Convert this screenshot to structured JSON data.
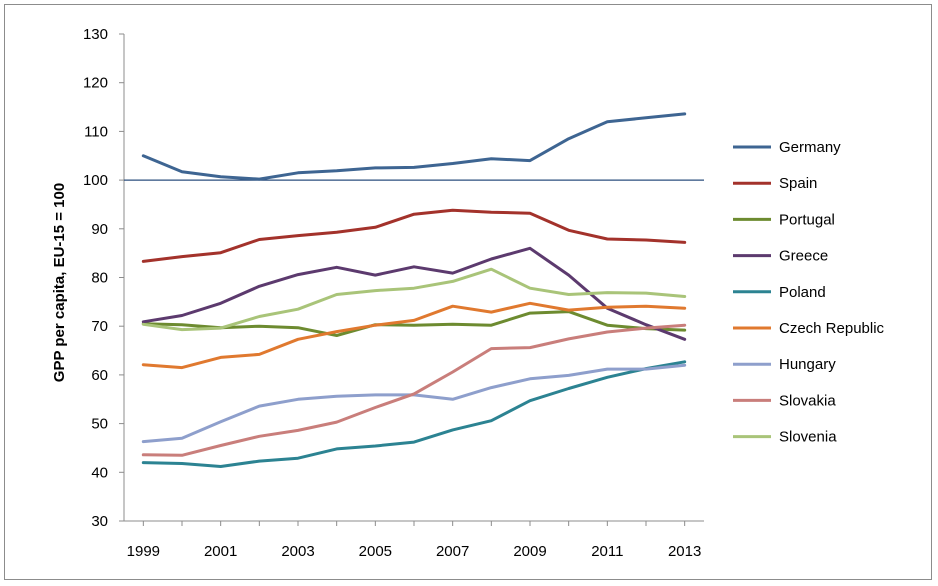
{
  "chart_data": {
    "type": "line",
    "title": "",
    "xlabel": "",
    "ylabel": "GPP per capita, EU-15 = 100",
    "ylim": [
      30,
      130
    ],
    "yticks": [
      30,
      40,
      50,
      60,
      70,
      80,
      90,
      100,
      110,
      120,
      130
    ],
    "xticks": [
      1999,
      2001,
      2003,
      2005,
      2007,
      2009,
      2011,
      2013
    ],
    "grid": false,
    "legend_position": "right",
    "reference_line": 100,
    "x": [
      1999,
      2000,
      2001,
      2002,
      2003,
      2004,
      2005,
      2006,
      2007,
      2008,
      2009,
      2010,
      2011,
      2012,
      2013
    ],
    "series": [
      {
        "name": "Germany",
        "color": "#3e6592",
        "values": [
          105,
          101.7,
          100.7,
          100.2,
          101.5,
          101.9,
          102.5,
          102.6,
          103.4,
          104.4,
          104,
          108.5,
          112,
          112.8,
          113.6
        ]
      },
      {
        "name": "Spain",
        "color": "#a3322b",
        "values": [
          83.3,
          84.3,
          85.1,
          87.8,
          88.6,
          89.3,
          90.3,
          93,
          93.8,
          93.4,
          93.2,
          89.7,
          87.9,
          87.7,
          87.2
        ]
      },
      {
        "name": "Portugal",
        "color": "#6d8b30",
        "values": [
          70.5,
          70.3,
          69.7,
          70,
          69.7,
          68.1,
          70.3,
          70.2,
          70.4,
          70.2,
          72.7,
          73,
          70.2,
          69.5,
          69.2
        ]
      },
      {
        "name": "Greece",
        "color": "#5c3a6e",
        "values": [
          70.9,
          72.2,
          74.7,
          78.2,
          80.6,
          82.1,
          80.5,
          82.2,
          80.9,
          83.8,
          86,
          80.5,
          73.7,
          70.3,
          67.3
        ]
      },
      {
        "name": "Poland",
        "color": "#2c8392",
        "values": [
          42,
          41.8,
          41.2,
          42.3,
          42.9,
          44.8,
          45.4,
          46.2,
          48.7,
          50.6,
          54.7,
          57.2,
          59.5,
          61.3,
          62.7
        ]
      },
      {
        "name": "Czech Republic",
        "color": "#e0792f",
        "values": [
          62.1,
          61.5,
          63.6,
          64.2,
          67.3,
          68.9,
          70.2,
          71.2,
          74.1,
          72.9,
          74.7,
          73.3,
          73.9,
          74.1,
          73.7
        ]
      },
      {
        "name": "Hungary",
        "color": "#8e9fcc",
        "values": [
          46.3,
          47,
          50.4,
          53.6,
          55,
          55.6,
          55.9,
          55.9,
          55,
          57.4,
          59.2,
          59.9,
          61.2,
          61.2,
          62
        ]
      },
      {
        "name": "Slovakia",
        "color": "#c97e7b",
        "values": [
          43.6,
          43.5,
          45.5,
          47.4,
          48.6,
          50.3,
          53.3,
          56.1,
          60.6,
          65.4,
          65.6,
          67.4,
          68.8,
          69.6,
          70.2
        ]
      },
      {
        "name": "Slovenia",
        "color": "#a9c479",
        "values": [
          70.4,
          69.3,
          69.6,
          72,
          73.5,
          76.5,
          77.3,
          77.8,
          79.2,
          81.7,
          77.8,
          76.5,
          76.9,
          76.8,
          76.1
        ]
      }
    ]
  }
}
